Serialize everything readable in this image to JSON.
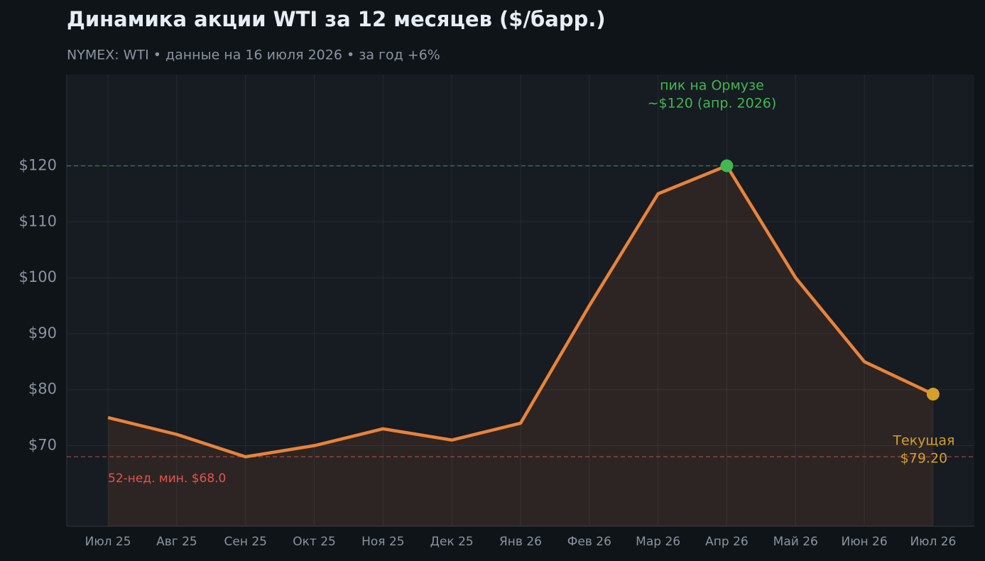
{
  "chart_data": {
    "type": "line",
    "title": "Динамика акции WTI за 12 месяцев ($/барр.)",
    "subtitle": "NYMEX: WTI  •  данные на 16 июля 2026  •  за год +6%",
    "categories": [
      "Июл 25",
      "Авг 25",
      "Сен 25",
      "Окт 25",
      "Ноя 25",
      "Дек 25",
      "Янв 26",
      "Фев 26",
      "Мар 26",
      "Апр 26",
      "Май 26",
      "Июн 26",
      "Июл 26"
    ],
    "values": [
      75,
      72,
      68,
      70,
      73,
      71,
      74,
      95,
      115,
      120,
      100,
      85,
      79.2
    ],
    "color": "#e8833a",
    "ylim": [
      55.6,
      136.3
    ],
    "yticks": [
      {
        "value": 70,
        "label": "$70"
      },
      {
        "value": 80,
        "label": "$80"
      },
      {
        "value": 90,
        "label": "$90"
      },
      {
        "value": 100,
        "label": "$100"
      },
      {
        "value": 110,
        "label": "$110"
      },
      {
        "value": 120,
        "label": "$120"
      }
    ],
    "grid": true,
    "hlines": [
      {
        "value": 120,
        "color": "#3fb950"
      },
      {
        "value": 68,
        "color": "#e5534b"
      }
    ],
    "highlights": [
      {
        "index": 9,
        "color": "#3fb950"
      },
      {
        "index": 12,
        "color": "#d4a02a"
      }
    ],
    "annotations": [
      {
        "lines": [
          "пик на Ормузе",
          "~$120 (апр. 2026)"
        ],
        "color": "#3fb950"
      },
      {
        "lines": [
          "Текущая",
          "$79.20"
        ],
        "color": "#d4a02a"
      },
      {
        "lines": [
          "52-нед. мин. $68.0"
        ],
        "color": "#e5534b"
      }
    ]
  }
}
